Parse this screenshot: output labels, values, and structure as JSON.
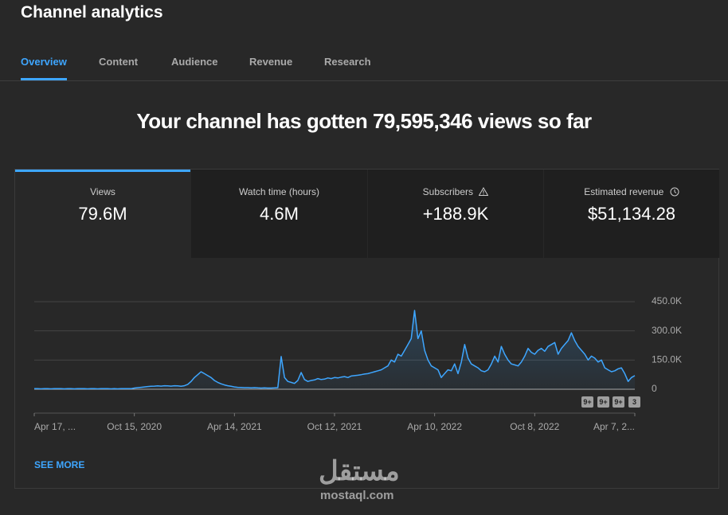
{
  "header": {
    "title": "Channel analytics"
  },
  "tabs": [
    "Overview",
    "Content",
    "Audience",
    "Revenue",
    "Research"
  ],
  "headline": "Your channel has gotten 79,595,346 views so far",
  "metrics": [
    {
      "label": "Views",
      "value": "79.6M"
    },
    {
      "label": "Watch time (hours)",
      "value": "4.6M"
    },
    {
      "label": "Subscribers",
      "value": "+188.9K"
    },
    {
      "label": "Estimated revenue",
      "value": "$51,134.28"
    }
  ],
  "see_more": "SEE MORE",
  "watermark": {
    "arabic": "مستقل",
    "latin": "mostaql.com"
  },
  "chart_data": {
    "type": "line",
    "color": "#3ea6ff",
    "grid": true,
    "ylim": [
      0,
      450000
    ],
    "yticks": [
      {
        "value": 0,
        "label": "0"
      },
      {
        "value": 150000,
        "label": "150.0K"
      },
      {
        "value": 300000,
        "label": "300.0K"
      },
      {
        "value": 450000,
        "label": "450.0K"
      }
    ],
    "annotations": [
      "9+",
      "9+",
      "9+",
      "3"
    ],
    "categories": [
      "Apr 17, ...",
      null,
      null,
      null,
      null,
      null,
      null,
      null,
      null,
      null,
      null,
      null,
      null,
      null,
      null,
      null,
      null,
      null,
      null,
      null,
      null,
      null,
      null,
      null,
      null,
      null,
      null,
      null,
      null,
      null,
      "Oct 15, 2020",
      null,
      null,
      null,
      null,
      null,
      null,
      null,
      null,
      null,
      null,
      null,
      null,
      null,
      null,
      null,
      null,
      null,
      null,
      null,
      null,
      null,
      null,
      null,
      null,
      null,
      null,
      null,
      null,
      null,
      "Apr 14, 2021",
      null,
      null,
      null,
      null,
      null,
      null,
      null,
      null,
      null,
      null,
      null,
      null,
      null,
      null,
      null,
      null,
      null,
      null,
      null,
      null,
      null,
      null,
      null,
      null,
      null,
      null,
      null,
      null,
      null,
      "Oct 12, 2021",
      null,
      null,
      null,
      null,
      null,
      null,
      null,
      null,
      null,
      null,
      null,
      null,
      null,
      null,
      null,
      null,
      null,
      null,
      null,
      null,
      null,
      null,
      null,
      null,
      null,
      null,
      null,
      null,
      null,
      "Apr 10, 2022",
      null,
      null,
      null,
      null,
      null,
      null,
      null,
      null,
      null,
      null,
      null,
      null,
      null,
      null,
      null,
      null,
      null,
      null,
      null,
      null,
      null,
      null,
      null,
      null,
      null,
      null,
      null,
      null,
      null,
      "Oct 8, 2022",
      null,
      null,
      null,
      null,
      null,
      null,
      null,
      null,
      null,
      null,
      null,
      null,
      null,
      null,
      null,
      null,
      null,
      null,
      null,
      null,
      null,
      null,
      null,
      null,
      null,
      null,
      null,
      null,
      null,
      "Apr 7, 2..."
    ],
    "values": [
      3000,
      3000,
      2000,
      3000,
      3000,
      2000,
      3000,
      3000,
      3000,
      2000,
      3000,
      3000,
      2000,
      3000,
      3000,
      3000,
      2000,
      3000,
      3000,
      2000,
      3000,
      3000,
      3000,
      2000,
      3000,
      2000,
      3000,
      3000,
      3000,
      3000,
      6000,
      8000,
      10000,
      12000,
      14000,
      15000,
      16000,
      17000,
      16000,
      18000,
      17000,
      16000,
      18000,
      17000,
      15000,
      18000,
      25000,
      40000,
      60000,
      75000,
      90000,
      80000,
      70000,
      60000,
      45000,
      35000,
      28000,
      22000,
      18000,
      15000,
      12000,
      10000,
      9000,
      8000,
      8000,
      7000,
      8000,
      7000,
      6000,
      7000,
      6000,
      6000,
      7000,
      8000,
      168000,
      60000,
      40000,
      35000,
      30000,
      45000,
      86000,
      50000,
      40000,
      45000,
      48000,
      55000,
      50000,
      52000,
      58000,
      55000,
      60000,
      58000,
      62000,
      65000,
      60000,
      68000,
      70000,
      72000,
      75000,
      78000,
      80000,
      85000,
      90000,
      95000,
      100000,
      110000,
      120000,
      150000,
      140000,
      180000,
      170000,
      200000,
      230000,
      260000,
      405000,
      260000,
      300000,
      200000,
      150000,
      120000,
      110000,
      100000,
      60000,
      80000,
      100000,
      95000,
      130000,
      80000,
      140000,
      230000,
      160000,
      130000,
      120000,
      110000,
      95000,
      90000,
      100000,
      130000,
      170000,
      140000,
      220000,
      180000,
      150000,
      130000,
      125000,
      120000,
      140000,
      170000,
      210000,
      190000,
      180000,
      200000,
      210000,
      195000,
      220000,
      230000,
      240000,
      180000,
      210000,
      230000,
      250000,
      290000,
      250000,
      220000,
      200000,
      180000,
      150000,
      170000,
      160000,
      140000,
      150000,
      110000,
      100000,
      90000,
      95000,
      105000,
      110000,
      80000,
      40000,
      60000,
      70000
    ]
  }
}
